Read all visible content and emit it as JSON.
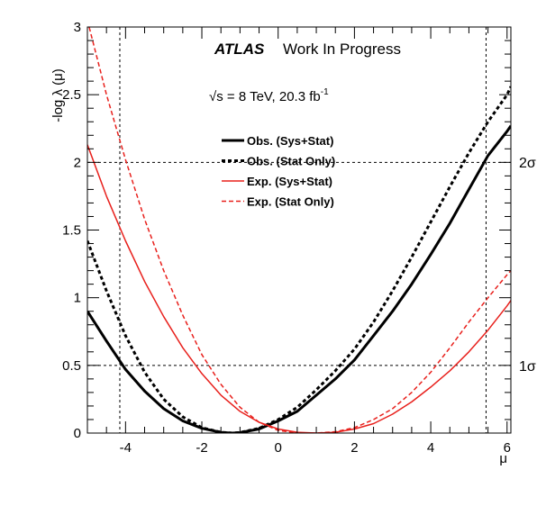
{
  "chart_data": {
    "type": "line",
    "xlabel": "μ",
    "ylabel": "-log λ (μ)",
    "xlim": [
      -5,
      6.1
    ],
    "ylim": [
      0,
      3
    ],
    "xticks": [
      "-4",
      "-2",
      "0",
      "2",
      "4",
      "6"
    ],
    "yticks": [
      "0",
      "0.5",
      "1",
      "1.5",
      "2",
      "2.5",
      "3"
    ],
    "header": {
      "experiment": "ATLAS",
      "status": "Work In Progress"
    },
    "energy_label": {
      "sqrt": "√s",
      "main": " = 8 TeV, 20.3 fb",
      "sup": "-1"
    },
    "sigma_labels": {
      "one": "1σ",
      "two": "2σ"
    },
    "reference_lines": {
      "y": [
        0.5,
        2.0
      ],
      "x": [
        -4.15,
        5.45
      ]
    },
    "series": [
      {
        "name": "Obs. (Sys+Stat)",
        "color": "#000000",
        "style": "solid",
        "x": [
          -5.0,
          -4.5,
          -4.0,
          -3.5,
          -3.0,
          -2.5,
          -2.0,
          -1.5,
          -1.2,
          -1.0,
          -0.5,
          0.0,
          0.5,
          1.0,
          1.5,
          2.0,
          2.5,
          3.0,
          3.5,
          4.0,
          4.5,
          5.0,
          5.5,
          6.0,
          6.1
        ],
        "values": [
          0.9,
          0.68,
          0.47,
          0.31,
          0.18,
          0.09,
          0.035,
          0.005,
          0.0,
          0.003,
          0.03,
          0.09,
          0.16,
          0.28,
          0.4,
          0.54,
          0.72,
          0.9,
          1.1,
          1.32,
          1.55,
          1.8,
          2.05,
          2.23,
          2.27
        ]
      },
      {
        "name": "Obs. (Stat Only)",
        "color": "#000000",
        "style": "dotted",
        "x": [
          -5.0,
          -4.5,
          -4.0,
          -3.5,
          -3.0,
          -2.5,
          -2.0,
          -1.5,
          -1.2,
          -1.0,
          -0.5,
          0.0,
          0.5,
          1.0,
          1.5,
          2.0,
          2.5,
          3.0,
          3.5,
          4.0,
          4.5,
          5.0,
          5.5,
          6.0,
          6.1
        ],
        "values": [
          1.42,
          1.05,
          0.72,
          0.45,
          0.25,
          0.12,
          0.04,
          0.006,
          0.0,
          0.004,
          0.035,
          0.1,
          0.19,
          0.32,
          0.46,
          0.62,
          0.82,
          1.05,
          1.3,
          1.56,
          1.82,
          2.07,
          2.3,
          2.5,
          2.56
        ]
      },
      {
        "name": "Exp. (Sys+Stat)",
        "color": "#e8201c",
        "style": "solid",
        "x": [
          -5.0,
          -4.5,
          -4.0,
          -3.5,
          -3.0,
          -2.5,
          -2.0,
          -1.5,
          -1.0,
          -0.5,
          0.0,
          0.5,
          1.0,
          1.5,
          2.0,
          2.5,
          3.0,
          3.5,
          4.0,
          4.5,
          5.0,
          5.5,
          6.0,
          6.1
        ],
        "values": [
          2.13,
          1.75,
          1.42,
          1.12,
          0.86,
          0.63,
          0.44,
          0.28,
          0.16,
          0.08,
          0.03,
          0.006,
          0.0,
          0.006,
          0.03,
          0.07,
          0.14,
          0.23,
          0.34,
          0.46,
          0.6,
          0.76,
          0.94,
          0.98
        ]
      },
      {
        "name": "Exp. (Stat Only)",
        "color": "#e8201c",
        "style": "dashed",
        "x": [
          -5.0,
          -4.5,
          -4.0,
          -3.5,
          -3.0,
          -2.5,
          -2.0,
          -1.5,
          -1.0,
          -0.5,
          0.0,
          0.5,
          1.0,
          1.5,
          2.0,
          2.5,
          3.0,
          3.5,
          4.0,
          4.5,
          5.0,
          5.5,
          6.0,
          6.1
        ],
        "values": [
          3.05,
          2.5,
          2.02,
          1.58,
          1.2,
          0.87,
          0.58,
          0.36,
          0.19,
          0.08,
          0.02,
          0.0,
          0.0,
          0.01,
          0.04,
          0.1,
          0.18,
          0.3,
          0.45,
          0.63,
          0.82,
          1.0,
          1.17,
          1.2
        ]
      }
    ],
    "legend_position": "top-center"
  }
}
